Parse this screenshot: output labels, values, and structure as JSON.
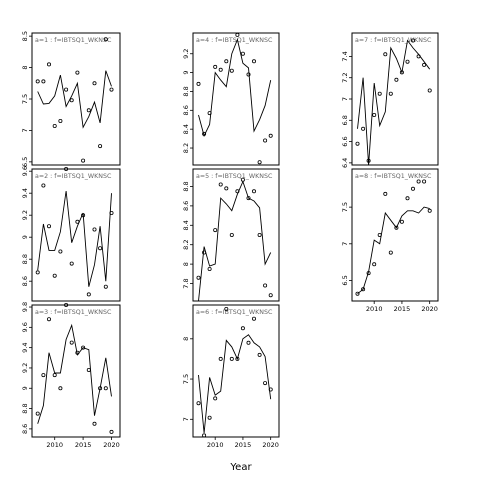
{
  "chart_data": {
    "type": "line",
    "title": "",
    "xlabel": "Year",
    "ylabel": "",
    "layout": "3x3 facet grid; middle column and left column share x ticks 2010, 2015, 2020; right column upper two panels share x ticks",
    "panels": [
      {
        "id": "a1",
        "title": "a=1  :  f=IBTSQ1_WKNSC",
        "xlim": [
          2006,
          2021.5
        ],
        "ylim": [
          6.45,
          8.55
        ],
        "xticks": [],
        "yticks": [
          6.5,
          7.0,
          7.5,
          8.0,
          8.5
        ],
        "line": {
          "x": [
            2007,
            2008,
            2009,
            2010,
            2011,
            2012,
            2013,
            2014,
            2015,
            2016,
            2017,
            2018,
            2019,
            2020
          ],
          "y": [
            7.62,
            7.42,
            7.43,
            7.55,
            7.88,
            7.38,
            7.55,
            7.75,
            7.05,
            7.22,
            7.45,
            7.12,
            7.95,
            7.7
          ]
        },
        "points": {
          "x": [
            2007,
            2008,
            2009,
            2010,
            2011,
            2012,
            2013,
            2014,
            2015,
            2016,
            2017,
            2018,
            2019,
            2020
          ],
          "y": [
            7.78,
            7.78,
            8.05,
            7.07,
            7.15,
            7.65,
            7.48,
            7.92,
            6.52,
            7.32,
            7.75,
            6.75,
            8.45,
            7.65
          ]
        }
      },
      {
        "id": "a4",
        "title": "a=4  :  f=IBTSQ1_WKNSC",
        "xlim": [
          2006,
          2021.5
        ],
        "ylim": [
          8.02,
          9.42
        ],
        "xticks": [],
        "yticks": [
          8.2,
          8.4,
          8.6,
          8.8,
          9.0,
          9.2
        ],
        "line": {
          "x": [
            2007,
            2008,
            2009,
            2010,
            2011,
            2012,
            2013,
            2014,
            2015,
            2016,
            2017,
            2018,
            2019,
            2020
          ],
          "y": [
            8.55,
            8.33,
            8.45,
            9.0,
            8.92,
            8.85,
            9.2,
            9.35,
            9.1,
            9.05,
            8.38,
            8.5,
            8.65,
            8.92
          ]
        },
        "points": {
          "x": [
            2007,
            2008,
            2009,
            2010,
            2011,
            2012,
            2013,
            2014,
            2015,
            2016,
            2017,
            2018,
            2019,
            2020
          ],
          "y": [
            8.88,
            8.35,
            8.57,
            9.06,
            9.03,
            9.12,
            9.02,
            9.4,
            9.2,
            8.98,
            9.12,
            8.05,
            8.28,
            8.33
          ]
        }
      },
      {
        "id": "a7",
        "title": "a=7  :  f=IBTSQ1_WKNSC",
        "xlim": [
          2006,
          2021.5
        ],
        "ylim": [
          6.38,
          7.62
        ],
        "xticks": [],
        "yticks": [
          6.4,
          6.6,
          6.8,
          7.0,
          7.2,
          7.4
        ],
        "line": {
          "x": [
            2007,
            2008,
            2009,
            2010,
            2011,
            2012,
            2013,
            2014,
            2015,
            2016,
            2017,
            2018,
            2019,
            2020
          ],
          "y": [
            6.72,
            7.2,
            6.38,
            7.15,
            6.75,
            6.88,
            7.48,
            7.38,
            7.25,
            7.55,
            7.48,
            7.42,
            7.35,
            7.28
          ]
        },
        "points": {
          "x": [
            2007,
            2008,
            2009,
            2010,
            2011,
            2012,
            2013,
            2014,
            2015,
            2016,
            2017,
            2018,
            2019,
            2020
          ],
          "y": [
            6.58,
            6.72,
            6.42,
            6.85,
            7.05,
            7.42,
            7.05,
            7.18,
            7.25,
            7.35,
            7.55,
            7.4,
            7.32,
            7.08
          ]
        }
      },
      {
        "id": "a2",
        "title": "a=2  :  f=IBTSQ1_WKNSC",
        "xlim": [
          2006,
          2021.5
        ],
        "ylim": [
          8.42,
          9.62
        ],
        "xticks": [],
        "yticks": [
          8.6,
          8.8,
          9.0,
          9.2,
          9.4,
          9.6
        ],
        "line": {
          "x": [
            2007,
            2008,
            2009,
            2010,
            2011,
            2012,
            2013,
            2014,
            2015,
            2016,
            2017,
            2018,
            2019,
            2020
          ],
          "y": [
            8.7,
            9.12,
            8.88,
            8.88,
            9.05,
            9.42,
            8.95,
            9.1,
            9.22,
            8.55,
            8.75,
            9.1,
            8.6,
            9.4
          ]
        },
        "points": {
          "x": [
            2007,
            2008,
            2009,
            2010,
            2011,
            2012,
            2013,
            2014,
            2015,
            2016,
            2017,
            2018,
            2019,
            2020
          ],
          "y": [
            8.68,
            9.47,
            9.1,
            8.65,
            8.87,
            9.62,
            8.76,
            9.14,
            9.2,
            8.48,
            9.07,
            8.9,
            8.55,
            9.22
          ]
        }
      },
      {
        "id": "a5",
        "title": "a=5  :  f=IBTSQ1_WKNSC",
        "xlim": [
          2006,
          2021.5
        ],
        "ylim": [
          7.62,
          8.98
        ],
        "xticks": [],
        "yticks": [
          7.8,
          8.0,
          8.2,
          8.4,
          8.6,
          8.8
        ],
        "line": {
          "x": [
            2007,
            2008,
            2009,
            2010,
            2011,
            2012,
            2013,
            2014,
            2015,
            2016,
            2017,
            2018,
            2019,
            2020
          ],
          "y": [
            7.62,
            8.18,
            7.98,
            8.0,
            8.68,
            8.62,
            8.55,
            8.72,
            8.85,
            8.68,
            8.65,
            8.58,
            8.0,
            8.12
          ]
        },
        "points": {
          "x": [
            2007,
            2008,
            2009,
            2010,
            2011,
            2012,
            2013,
            2014,
            2015,
            2016,
            2017,
            2018,
            2019,
            2020
          ],
          "y": [
            7.86,
            8.12,
            7.95,
            8.35,
            8.82,
            8.78,
            8.3,
            8.75,
            8.87,
            8.68,
            8.75,
            8.3,
            7.78,
            7.68
          ]
        }
      },
      {
        "id": "a8",
        "title": "a=8  :  f=IBTSQ1_WKNSC",
        "xlim": [
          2006,
          2021.5
        ],
        "ylim": [
          6.22,
          8.02
        ],
        "xticks": [
          2010,
          2015,
          2020
        ],
        "yticks": [
          6.5,
          7.0,
          7.5
        ],
        "line": {
          "x": [
            2007,
            2008,
            2009,
            2010,
            2011,
            2012,
            2013,
            2014,
            2015,
            2016,
            2017,
            2018,
            2019,
            2020
          ],
          "y": [
            6.32,
            6.38,
            6.62,
            7.05,
            7.0,
            7.42,
            7.32,
            7.22,
            7.38,
            7.45,
            7.45,
            7.42,
            7.5,
            7.48
          ]
        },
        "points": {
          "x": [
            2007,
            2008,
            2009,
            2010,
            2011,
            2012,
            2013,
            2014,
            2015,
            2016,
            2017,
            2018,
            2019,
            2020
          ],
          "y": [
            6.32,
            6.38,
            6.6,
            6.72,
            7.12,
            7.68,
            6.88,
            7.22,
            7.3,
            7.62,
            7.75,
            7.85,
            7.85,
            7.45
          ]
        }
      },
      {
        "id": "a3",
        "title": "a=3  :  f=IBTSQ1_WKNSC",
        "xlim": [
          2006,
          2021.5
        ],
        "ylim": [
          8.52,
          9.82
        ],
        "xticks": [
          2010,
          2015,
          2020
        ],
        "yticks": [
          8.6,
          8.8,
          9.0,
          9.2,
          9.4,
          9.6,
          9.8
        ],
        "line": {
          "x": [
            2007,
            2008,
            2009,
            2010,
            2011,
            2012,
            2013,
            2014,
            2015,
            2016,
            2017,
            2018,
            2019,
            2020
          ],
          "y": [
            8.65,
            8.83,
            9.35,
            9.15,
            9.15,
            9.48,
            9.62,
            9.33,
            9.4,
            9.38,
            8.73,
            9.0,
            9.3,
            8.92
          ]
        },
        "points": {
          "x": [
            2007,
            2008,
            2009,
            2010,
            2011,
            2012,
            2013,
            2014,
            2015,
            2016,
            2017,
            2018,
            2019,
            2020
          ],
          "y": [
            8.75,
            9.13,
            9.68,
            9.13,
            9.0,
            9.82,
            9.45,
            9.35,
            9.4,
            9.18,
            8.65,
            9.0,
            9.0,
            8.57
          ]
        }
      },
      {
        "id": "a6",
        "title": "a=6  :  f=IBTSQ1_WKNSC",
        "xlim": [
          2006,
          2021.5
        ],
        "ylim": [
          6.78,
          8.42
        ],
        "xticks": [
          2010,
          2015,
          2020
        ],
        "yticks": [
          7.0,
          7.5,
          8.0
        ],
        "line": {
          "x": [
            2007,
            2008,
            2009,
            2010,
            2011,
            2012,
            2013,
            2014,
            2015,
            2016,
            2017,
            2018,
            2019,
            2020
          ],
          "y": [
            7.55,
            6.83,
            7.52,
            7.3,
            7.35,
            7.98,
            7.9,
            7.75,
            8.0,
            8.05,
            7.95,
            7.9,
            7.78,
            7.25
          ]
        },
        "points": {
          "x": [
            2007,
            2008,
            2009,
            2010,
            2011,
            2012,
            2013,
            2014,
            2015,
            2016,
            2017,
            2018,
            2019,
            2020
          ],
          "y": [
            7.2,
            6.8,
            7.02,
            7.26,
            7.75,
            8.37,
            7.75,
            7.75,
            8.13,
            7.95,
            8.25,
            7.8,
            7.45,
            7.37
          ]
        }
      }
    ]
  }
}
